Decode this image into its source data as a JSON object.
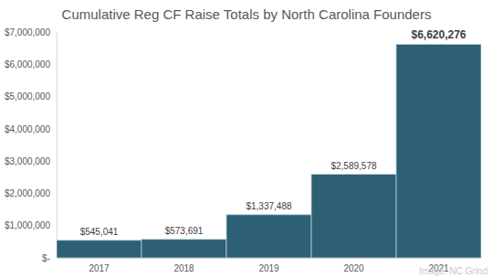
{
  "chart_data": {
    "type": "bar",
    "title": "Cumulative Reg CF Raise Totals by North Carolina Founders",
    "categories": [
      "2017",
      "2018",
      "2019",
      "2020",
      "2021"
    ],
    "values": [
      545041,
      573691,
      1337488,
      2589578,
      6620276
    ],
    "value_labels": [
      "$545,041",
      "$573,691",
      "$1,337,488",
      "$2,589,578",
      "$6,620,276"
    ],
    "data_labels": true,
    "color": "#2d5f75",
    "ylim": [
      0,
      7000000
    ],
    "yticks": [
      {
        "value": 0,
        "label": "$-"
      },
      {
        "value": 1000000,
        "label": "$1,000,000"
      },
      {
        "value": 2000000,
        "label": "$2,000,000"
      },
      {
        "value": 3000000,
        "label": "$3,000,000"
      },
      {
        "value": 4000000,
        "label": "$4,000,000"
      },
      {
        "value": 5000000,
        "label": "$5,000,000"
      },
      {
        "value": 6000000,
        "label": "$6,000,000"
      },
      {
        "value": 7000000,
        "label": "$7,000,000"
      }
    ],
    "grid": false,
    "annotations": [
      "Image: NC Grind"
    ]
  }
}
